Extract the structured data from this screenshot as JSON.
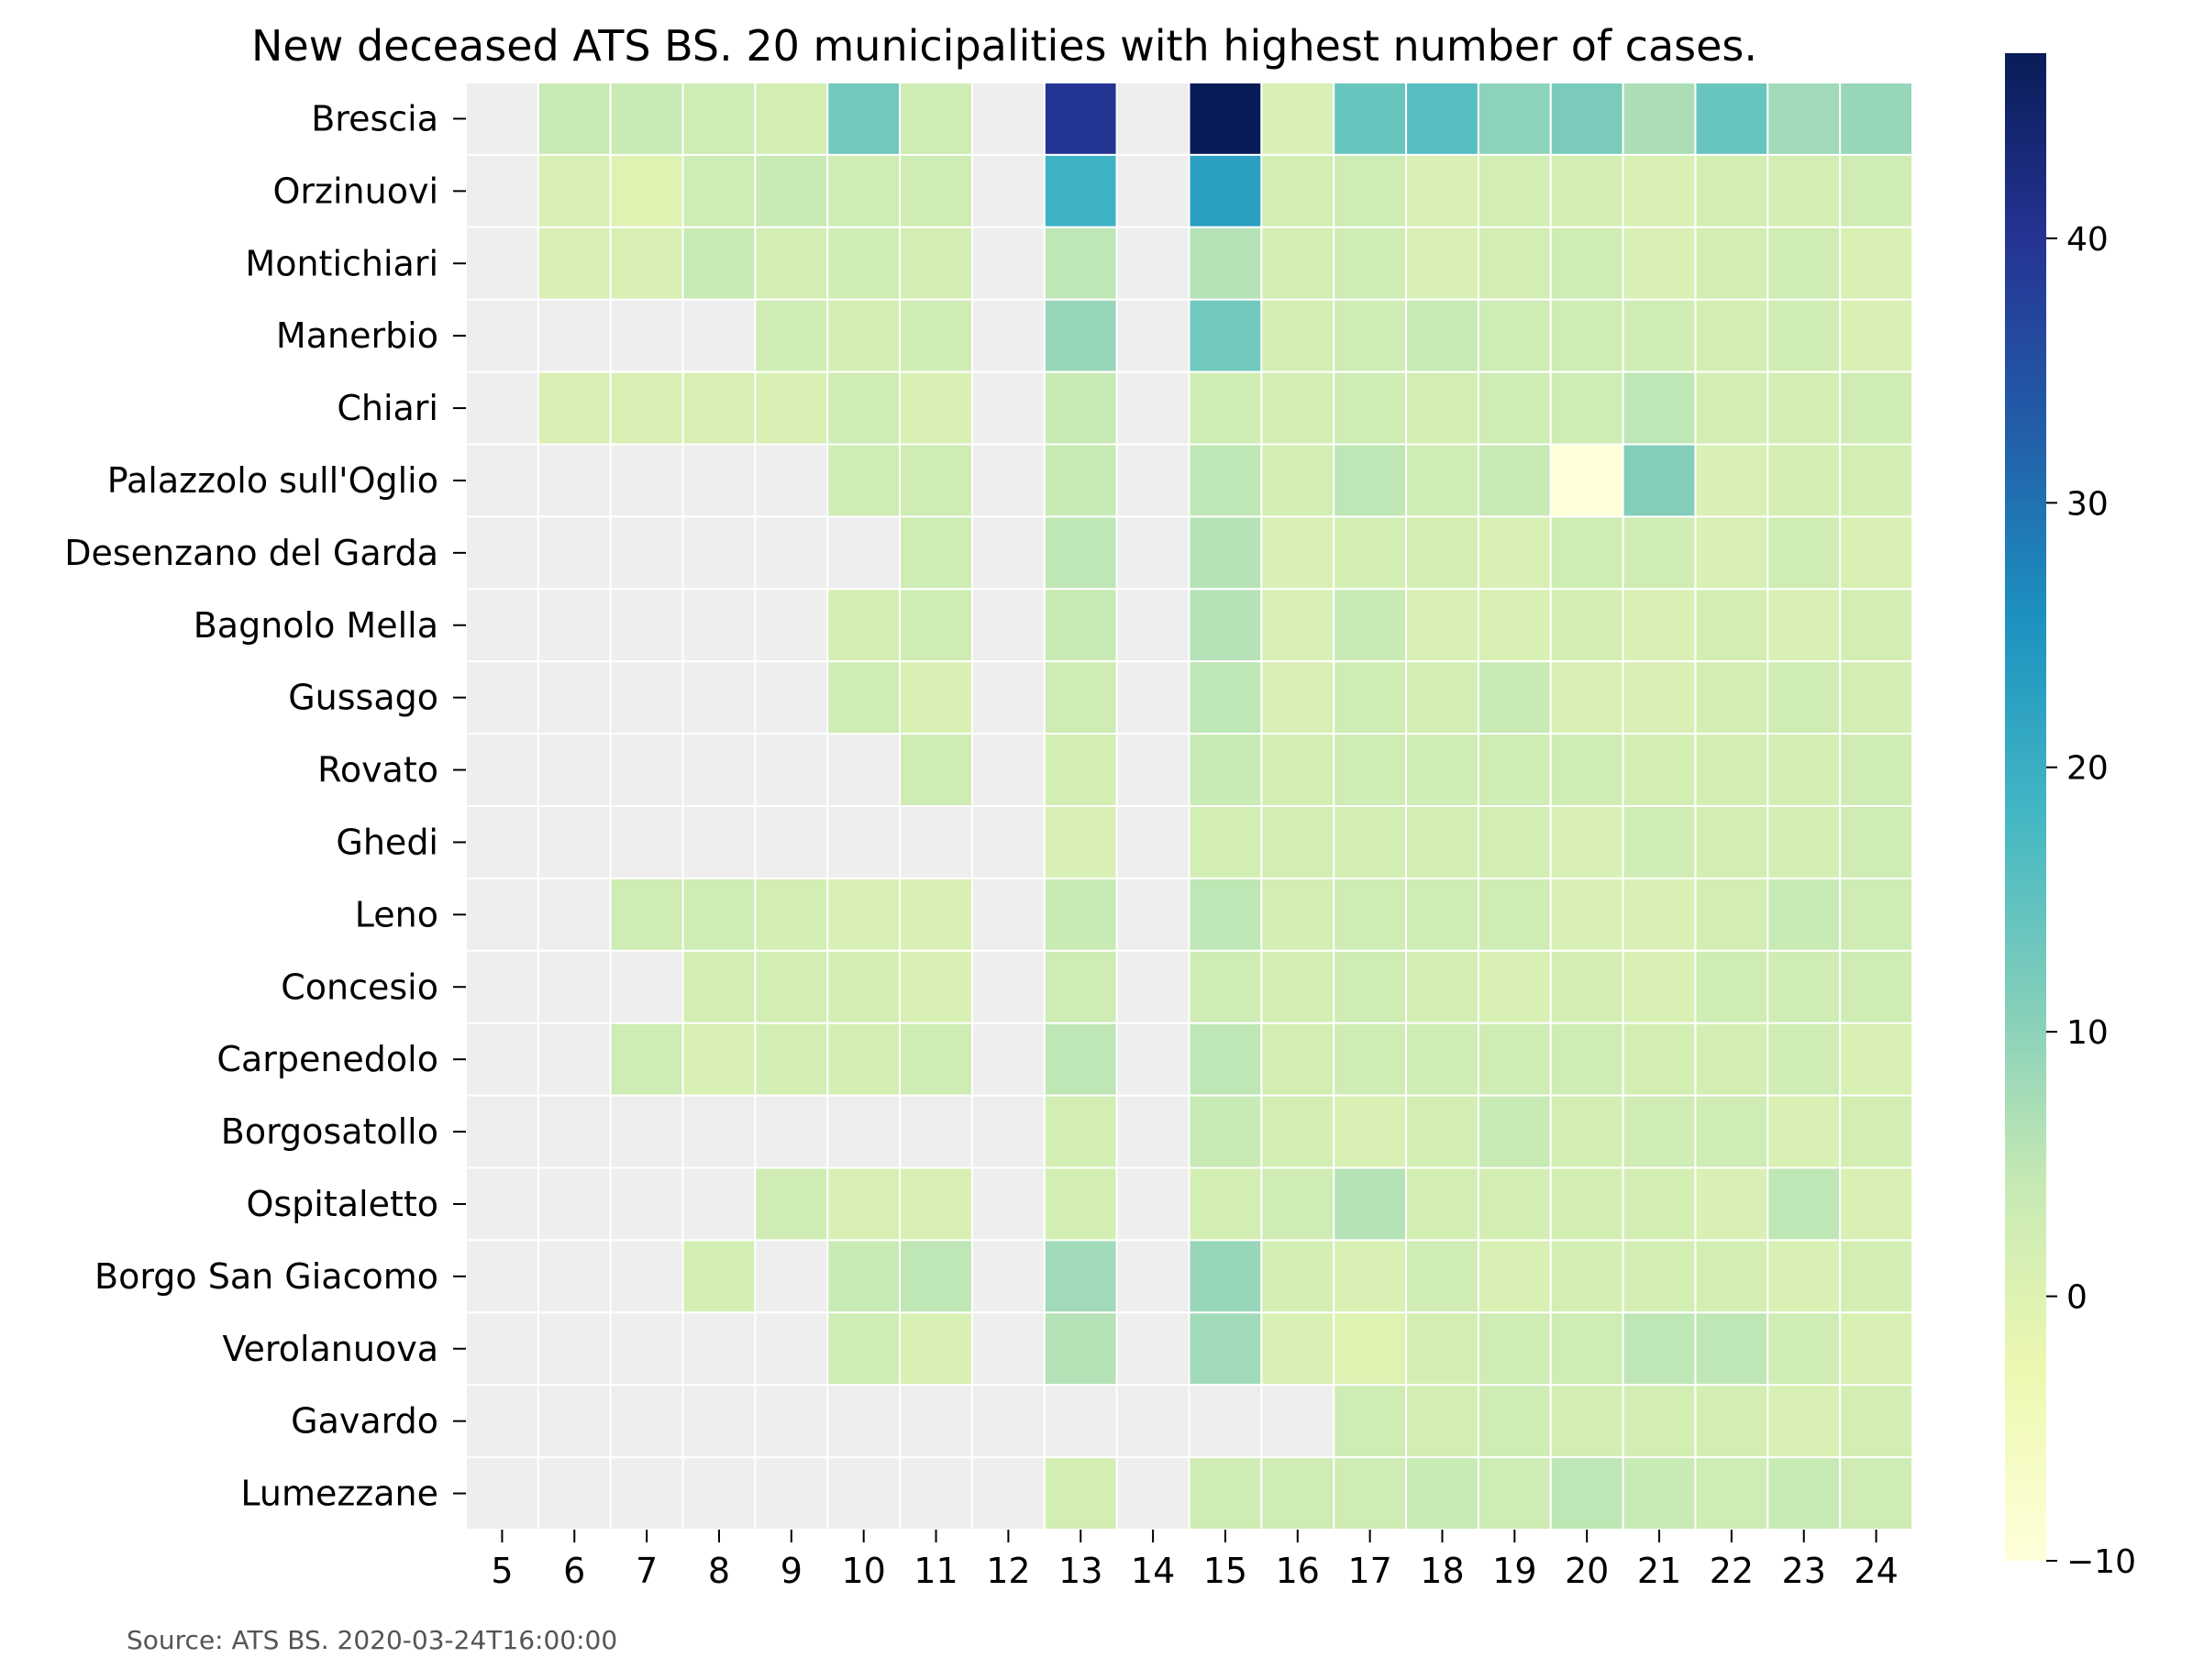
{
  "chart_data": {
    "type": "heatmap",
    "title": "New deceased ATS BS. 20 municipalities with highest number of cases.",
    "source": "Source: ATS BS. 2020-03-24T16:00:00",
    "x": [
      5,
      6,
      7,
      8,
      9,
      10,
      11,
      12,
      13,
      14,
      15,
      16,
      17,
      18,
      19,
      20,
      21,
      22,
      23,
      24
    ],
    "y": [
      "Brescia",
      "Orzinuovi",
      "Montichiari",
      "Manerbio",
      "Chiari",
      "Palazzolo sull'Oglio",
      "Desenzano del Garda",
      "Bagnolo Mella",
      "Gussago",
      "Rovato",
      "Ghedi",
      "Leno",
      "Concesio",
      "Carpenedolo",
      "Borgosatollo",
      "Ospitaletto",
      "Borgo San Giacomo",
      "Verolanuova",
      "Gavardo",
      "Lumezzane"
    ],
    "values": [
      [
        null,
        4,
        4,
        3,
        2,
        13,
        3,
        null,
        40,
        null,
        47,
        1,
        14,
        16,
        10,
        12,
        7,
        14,
        8,
        9
      ],
      [
        null,
        1,
        0,
        3,
        4,
        3,
        3,
        null,
        19,
        null,
        23,
        2,
        3,
        1,
        2,
        2,
        1,
        2,
        2,
        3
      ],
      [
        null,
        1,
        1,
        4,
        2,
        3,
        2,
        null,
        5,
        null,
        6,
        2,
        3,
        1,
        2,
        3,
        1,
        2,
        3,
        1
      ],
      [
        null,
        null,
        null,
        null,
        3,
        2,
        3,
        null,
        9,
        null,
        13,
        2,
        3,
        4,
        3,
        3,
        3,
        2,
        3,
        1
      ],
      [
        null,
        1,
        1,
        1,
        1,
        3,
        1,
        null,
        4,
        null,
        3,
        2,
        3,
        2,
        3,
        3,
        5,
        2,
        2,
        3
      ],
      [
        null,
        null,
        null,
        null,
        null,
        3,
        3,
        null,
        4,
        null,
        5,
        2,
        5,
        3,
        4,
        -10,
        11,
        1,
        2,
        2
      ],
      [
        null,
        null,
        null,
        null,
        null,
        null,
        3,
        null,
        5,
        null,
        6,
        1,
        2,
        2,
        1,
        3,
        3,
        1,
        3,
        1
      ],
      [
        null,
        null,
        null,
        null,
        null,
        2,
        3,
        null,
        4,
        null,
        6,
        1,
        4,
        1,
        1,
        2,
        1,
        2,
        1,
        2
      ],
      [
        null,
        null,
        null,
        null,
        null,
        3,
        1,
        null,
        3,
        null,
        5,
        1,
        3,
        2,
        4,
        1,
        1,
        2,
        3,
        2
      ],
      [
        null,
        null,
        null,
        null,
        null,
        null,
        3,
        null,
        2,
        null,
        4,
        2,
        3,
        3,
        3,
        3,
        2,
        2,
        2,
        3
      ],
      [
        null,
        null,
        null,
        null,
        null,
        null,
        null,
        null,
        1,
        null,
        2,
        2,
        2,
        2,
        2,
        1,
        3,
        2,
        2,
        3
      ],
      [
        null,
        null,
        3,
        3,
        2,
        1,
        1,
        null,
        4,
        null,
        5,
        2,
        3,
        3,
        3,
        1,
        1,
        2,
        4,
        3
      ],
      [
        null,
        null,
        null,
        2,
        2,
        2,
        1,
        null,
        3,
        null,
        3,
        2,
        3,
        2,
        1,
        2,
        1,
        3,
        3,
        3
      ],
      [
        null,
        null,
        3,
        1,
        2,
        2,
        3,
        null,
        5,
        null,
        5,
        2,
        3,
        3,
        3,
        3,
        2,
        2,
        3,
        1
      ],
      [
        null,
        null,
        null,
        null,
        null,
        null,
        null,
        null,
        2,
        null,
        4,
        2,
        1,
        2,
        4,
        2,
        3,
        3,
        1,
        2
      ],
      [
        null,
        null,
        null,
        null,
        3,
        1,
        1,
        null,
        2,
        null,
        2,
        3,
        6,
        2,
        2,
        2,
        2,
        1,
        5,
        1
      ],
      [
        null,
        null,
        null,
        2,
        null,
        4,
        5,
        null,
        8,
        null,
        9,
        2,
        1,
        3,
        1,
        2,
        2,
        2,
        1,
        2
      ],
      [
        null,
        null,
        null,
        null,
        null,
        3,
        1,
        null,
        6,
        null,
        8,
        1,
        0,
        2,
        3,
        3,
        5,
        5,
        3,
        1
      ],
      [
        null,
        null,
        null,
        null,
        null,
        null,
        null,
        null,
        null,
        null,
        null,
        null,
        3,
        2,
        3,
        2,
        2,
        2,
        1,
        2
      ],
      [
        null,
        null,
        null,
        null,
        null,
        null,
        null,
        null,
        2,
        null,
        3,
        3,
        3,
        4,
        3,
        5,
        4,
        3,
        4,
        3
      ]
    ],
    "missing_color": "#eeeeee",
    "colormap": "YlGnBu",
    "vmin": -10,
    "vmax": 47,
    "colorbar_ticks": [
      -10,
      0,
      10,
      20,
      30,
      40
    ],
    "colorbar_tick_labels": [
      "−10",
      "0",
      "10",
      "20",
      "30",
      "40"
    ]
  }
}
